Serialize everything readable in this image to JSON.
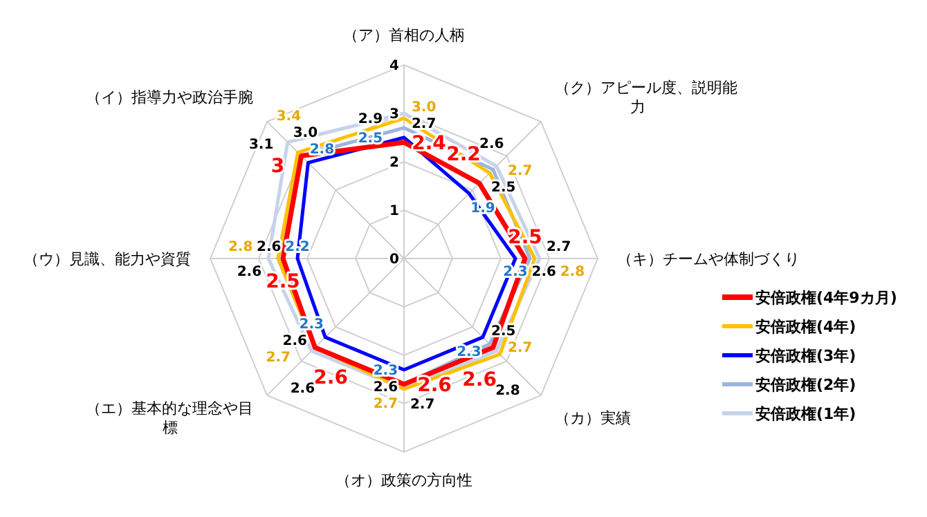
{
  "chart_data": {
    "type": "radar",
    "categories": [
      "（ア）首相の人柄",
      "（ク）アピール度、説明能力",
      "（キ）チームや体制づくり",
      "（カ）実績",
      "（オ）政策の方向性",
      "（エ）基本的な理念や目標",
      "（ウ）見識、能力や資質",
      "（イ）指導力や政治手腕"
    ],
    "series": [
      {
        "name": "安倍政権(4年9カ月)",
        "color": "#ff0000",
        "values": [
          2.4,
          2.2,
          2.5,
          2.6,
          2.6,
          2.6,
          2.5,
          3
        ],
        "value_labels": [
          "2.4",
          "2.2",
          "2.5",
          "2.6",
          "2.6",
          "2.6",
          "2.5",
          "3"
        ]
      },
      {
        "name": "安倍政権(4年)",
        "color": "#ffc000",
        "values": [
          2.9,
          2.5,
          2.7,
          2.8,
          2.7,
          2.6,
          2.6,
          3.1
        ],
        "value_labels": [
          "2.9",
          "2.5",
          "2.7",
          "2.8",
          "2.7",
          "2.6",
          "2.6",
          "3.1"
        ]
      },
      {
        "name": "安倍政権(3年)",
        "color": "#0000ff",
        "values": [
          2.5,
          1.9,
          2.3,
          2.3,
          2.3,
          2.3,
          2.2,
          2.8
        ],
        "value_labels": [
          "2.5",
          "1.9",
          "2.3",
          "2.3",
          "2.3",
          "2.3",
          "2.2",
          "2.8"
        ]
      },
      {
        "name": "安倍政権(2年)",
        "color": "#9db5dc",
        "values": [
          2.7,
          2.6,
          2.6,
          2.5,
          2.6,
          2.6,
          2.6,
          3.0
        ],
        "value_labels": [
          "2.7",
          "2.6",
          "2.6",
          "2.5",
          "2.6",
          "2.6",
          "2.6",
          "3.0"
        ]
      },
      {
        "name": "安倍政権(1年)",
        "color": "#c6d3ea",
        "values": [
          3.0,
          2.7,
          2.8,
          2.7,
          2.7,
          2.7,
          2.8,
          3.4
        ],
        "value_labels": [
          "3.0",
          "2.7",
          "2.8",
          "2.7",
          "2.7",
          "2.7",
          "2.8",
          "3.4"
        ]
      }
    ],
    "ylim": [
      0,
      4
    ],
    "yticks": [
      0,
      1,
      2,
      3,
      4
    ],
    "grid": true,
    "legend": "right",
    "marker": "none",
    "line_style": "solid"
  }
}
